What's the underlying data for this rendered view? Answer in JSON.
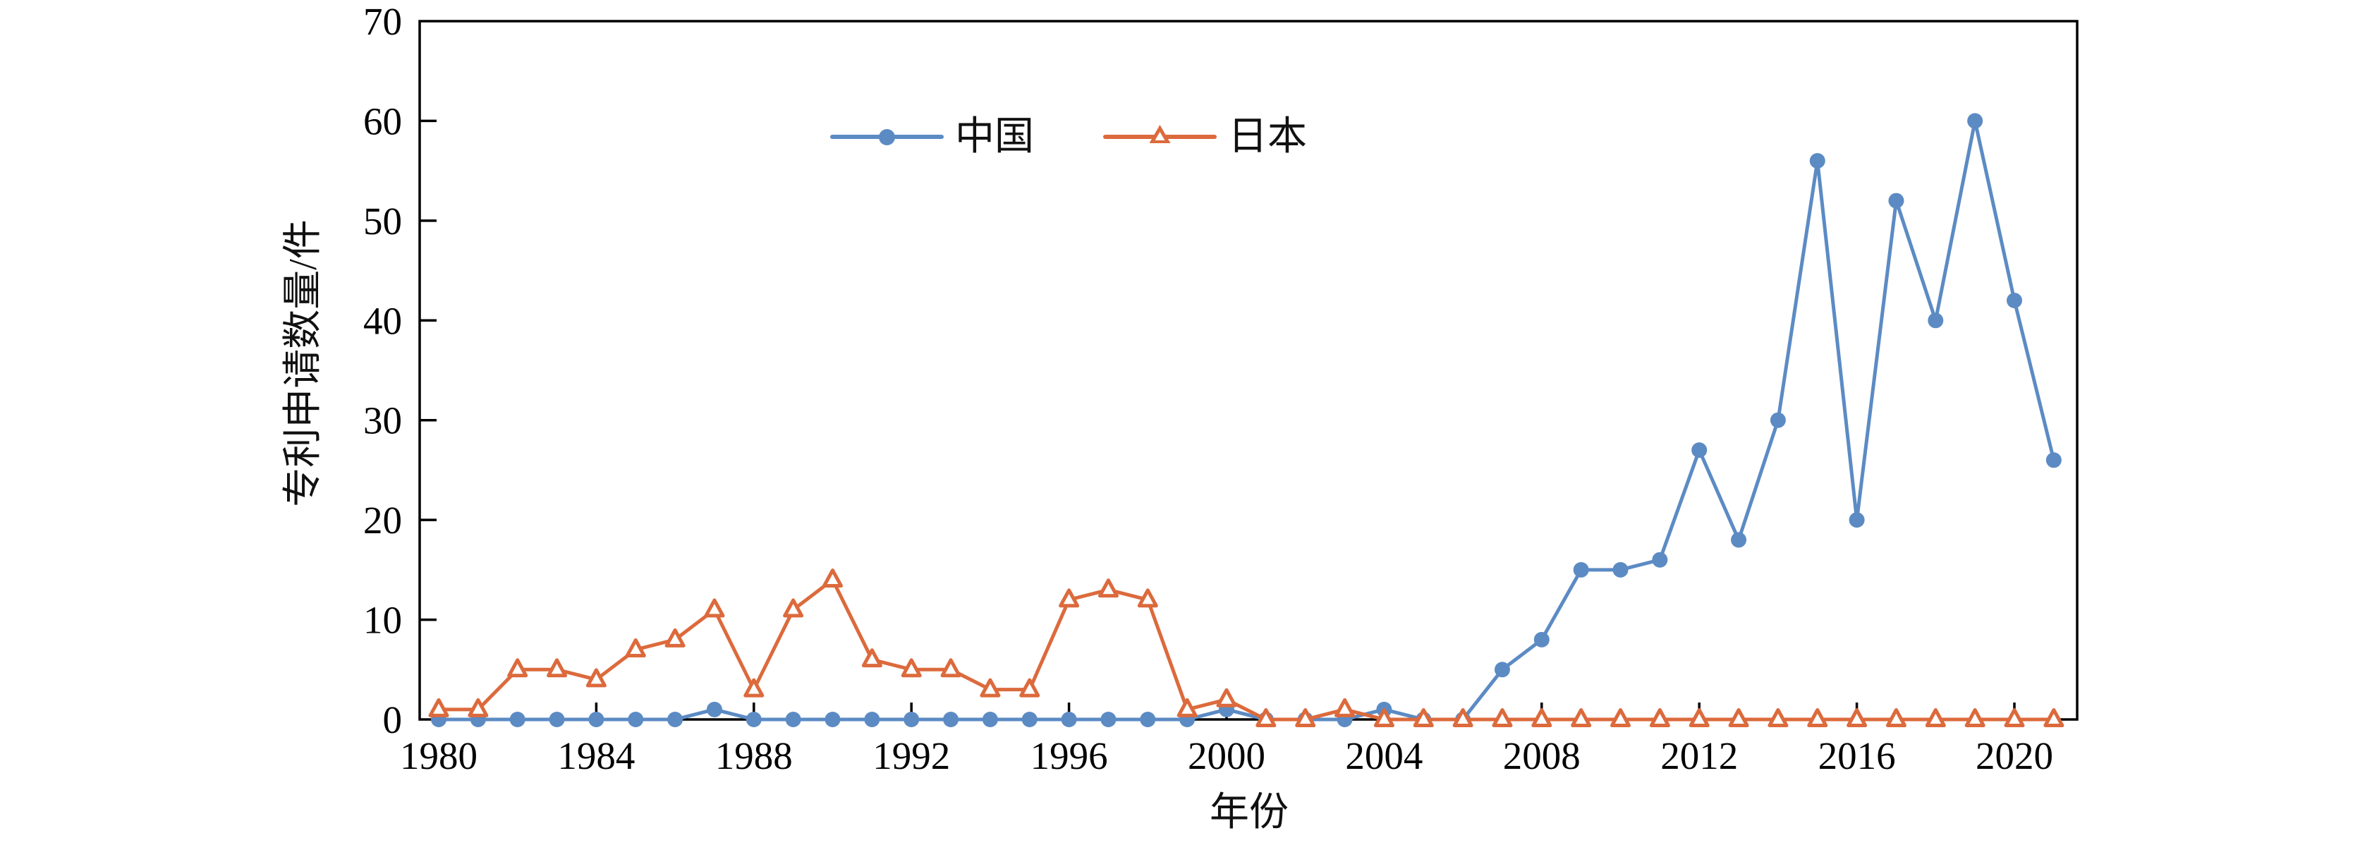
{
  "figure": {
    "background": "#ffffff",
    "axis_color": "#000000",
    "text_color": "#111111"
  },
  "chart_data": {
    "type": "line",
    "title": "",
    "xlabel": "年份",
    "ylabel": "专利申请数量/件",
    "x": [
      1980,
      1981,
      1982,
      1983,
      1984,
      1985,
      1986,
      1987,
      1988,
      1989,
      1990,
      1991,
      1992,
      1993,
      1994,
      1995,
      1996,
      1997,
      1998,
      1999,
      2000,
      2001,
      2002,
      2003,
      2004,
      2005,
      2006,
      2007,
      2008,
      2009,
      2010,
      2011,
      2012,
      2013,
      2014,
      2015,
      2016,
      2017,
      2018,
      2019,
      2020,
      2021
    ],
    "series": [
      {
        "name": "中国",
        "color": "#5C8BC4",
        "marker": "filled-circle",
        "values": [
          0,
          0,
          0,
          0,
          0,
          0,
          0,
          1,
          0,
          0,
          0,
          0,
          0,
          0,
          0,
          0,
          0,
          0,
          0,
          0,
          1,
          0,
          0,
          0,
          1,
          0,
          0,
          5,
          8,
          15,
          15,
          16,
          27,
          18,
          30,
          56,
          20,
          52,
          40,
          60,
          42,
          26
        ]
      },
      {
        "name": "日本",
        "color": "#DC6A3C",
        "marker": "open-triangle",
        "values": [
          1,
          1,
          5,
          5,
          4,
          7,
          8,
          11,
          3,
          11,
          14,
          6,
          5,
          5,
          3,
          3,
          12,
          13,
          12,
          1,
          2,
          0,
          0,
          1,
          0,
          0,
          0,
          0,
          0,
          0,
          0,
          0,
          0,
          0,
          0,
          0,
          0,
          0,
          0,
          0,
          0,
          0
        ]
      }
    ],
    "xticks": [
      1980,
      1984,
      1988,
      1992,
      1996,
      2000,
      2004,
      2008,
      2012,
      2016,
      2020
    ],
    "yticks": [
      0,
      10,
      20,
      30,
      40,
      50,
      60,
      70
    ],
    "ylim": [
      0,
      70
    ],
    "xlim": [
      1979.5,
      2021.6
    ],
    "grid": false,
    "legend_position": "top-center"
  }
}
